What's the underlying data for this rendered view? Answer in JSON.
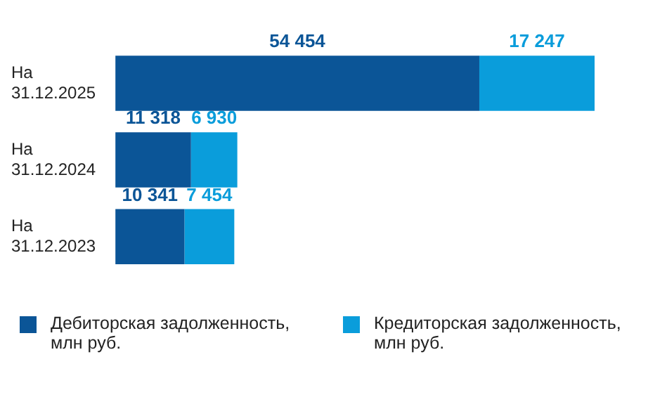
{
  "chart_data": {
    "type": "bar",
    "orientation": "horizontal",
    "stacked": true,
    "tick_labels": "y",
    "legend": "bottom",
    "categories": [
      "На 31.12.2025",
      "На 31.12.2024",
      "На 31.12.2023"
    ],
    "series": [
      {
        "name": "Дебиторская задолженность, млн руб.",
        "color": "#0b5597",
        "values": [
          54454,
          11318,
          10341
        ],
        "value_labels": [
          "54 454",
          "11 318",
          "10 341"
        ]
      },
      {
        "name": "Кредиторская задолженность, млн руб.",
        "color": "#0a9ddb",
        "values": [
          17247,
          6930,
          7454
        ],
        "value_labels": [
          "17 247",
          "6 930",
          "7 454"
        ]
      }
    ]
  }
}
